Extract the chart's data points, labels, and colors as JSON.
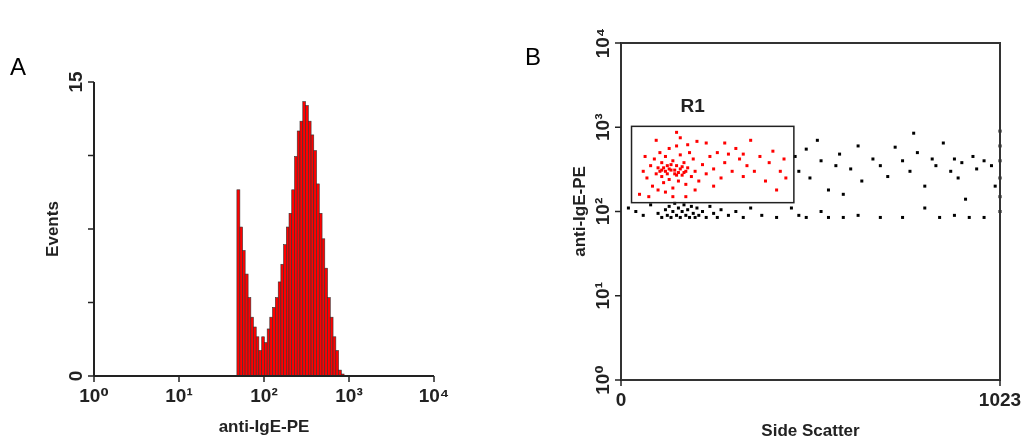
{
  "chart_data": [
    {
      "type": "histogram",
      "title": "A",
      "xlabel": "anti-IgE-PE",
      "ylabel": "Events",
      "log": "x",
      "color": "#ff0000",
      "bins": [
        48,
        52,
        56,
        60,
        65,
        70,
        75,
        81,
        87,
        94,
        101,
        109,
        117,
        126,
        136,
        147,
        158,
        170,
        183,
        197,
        212,
        229,
        246,
        265,
        286,
        308,
        332,
        358,
        385,
        415,
        447,
        482,
        519,
        559,
        602,
        649,
        700,
        754,
        812,
        875
      ],
      "values": [
        9.5,
        7.6,
        6.4,
        5.2,
        4.0,
        3.0,
        2.5,
        2.0,
        1.3,
        2.0,
        1.7,
        2.4,
        3.0,
        3.5,
        4.0,
        4.8,
        5.7,
        6.7,
        7.6,
        8.3,
        9.5,
        11.2,
        12.5,
        13.0,
        14.0,
        13.8,
        13.0,
        12.3,
        11.5,
        9.8,
        8.3,
        7.0,
        5.5,
        4.0,
        3.0,
        2.0,
        1.3,
        0.3,
        0.1
      ],
      "xlim": [
        1,
        10000
      ],
      "xticks": [
        {
          "value": 1,
          "label": "10⁰"
        },
        {
          "value": 10,
          "label": "10¹"
        },
        {
          "value": 100,
          "label": "10²"
        },
        {
          "value": 1000,
          "label": "10³"
        },
        {
          "value": 10000,
          "label": "10⁴"
        }
      ],
      "ylim": [
        0,
        15
      ],
      "yticks": [
        0,
        {
          "value": 3.75,
          "label": null
        },
        {
          "value": 7.5,
          "label": null
        },
        {
          "value": 11.25,
          "label": null
        },
        15
      ]
    },
    {
      "type": "scatter",
      "title": "B",
      "xlabel": "Side Scatter",
      "ylabel": "anti-IgE-PE",
      "log": "y",
      "marker": "square",
      "xlim": [
        0,
        1023
      ],
      "xticks": [
        0,
        1023
      ],
      "ylim": [
        1,
        10000
      ],
      "yticks": [
        {
          "value": 1,
          "label": "10⁰"
        },
        {
          "value": 10,
          "label": "10¹"
        },
        {
          "value": 100,
          "label": "10²"
        },
        {
          "value": 1000,
          "label": "10³"
        },
        {
          "value": 10000,
          "label": "10⁴"
        }
      ],
      "annotations": [
        "R1"
      ],
      "series": [
        {
          "color": "#ff0000",
          "x": [
            60,
            70,
            80,
            85,
            90,
            95,
            100,
            100,
            105,
            110,
            110,
            115,
            120,
            120,
            125,
            130,
            130,
            135,
            140,
            140,
            145,
            150,
            150,
            155,
            160,
            160,
            165,
            170,
            175,
            180,
            185,
            190,
            195,
            200,
            205,
            210,
            220,
            230,
            240,
            250,
            260,
            270,
            280,
            290,
            300,
            310,
            320,
            330,
            340,
            350,
            360,
            375,
            390,
            400,
            410,
            420,
            430,
            440,
            445,
            50,
            75,
            140,
            175,
            95,
            160,
            230,
            120,
            200,
            65,
            180,
            250,
            330,
            150,
            280,
            105,
            115,
            125,
            135,
            145,
            155,
            165,
            175,
            110,
            130,
            150,
            170
          ],
          "values": [
            300,
            250,
            350,
            200,
            420,
            280,
            330,
            180,
            500,
            260,
            380,
            220,
            300,
            450,
            350,
            240,
            560,
            310,
            400,
            190,
            280,
            350,
            600,
            230,
            320,
            470,
            270,
            380,
            210,
            330,
            500,
            260,
            420,
            300,
            680,
            230,
            360,
            280,
            450,
            320,
            500,
            250,
            380,
            480,
            300,
            560,
            420,
            260,
            350,
            700,
            300,
            450,
            230,
            380,
            520,
            180,
            300,
            420,
            250,
            160,
            150,
            150,
            150,
            700,
            750,
            650,
            170,
            180,
            450,
            620,
            200,
            480,
            870,
            650,
            300,
            330,
            280,
            360,
            310,
            290,
            340,
            300,
            310,
            320,
            270,
            290
          ]
        },
        {
          "color": "#000000",
          "x": [
            20,
            40,
            60,
            80,
            100,
            110,
            120,
            125,
            130,
            135,
            140,
            145,
            150,
            155,
            160,
            165,
            170,
            175,
            180,
            185,
            190,
            195,
            200,
            205,
            210,
            220,
            230,
            240,
            250,
            260,
            270,
            290,
            310,
            330,
            350,
            380,
            420,
            460,
            480,
            500,
            540,
            560,
            600,
            640,
            700,
            760,
            820,
            860,
            900,
            940,
            980,
            470,
            480,
            500,
            510,
            530,
            540,
            560,
            580,
            590,
            600,
            620,
            640,
            650,
            680,
            700,
            720,
            740,
            760,
            780,
            790,
            800,
            820,
            840,
            850,
            870,
            890,
            900,
            910,
            920,
            930,
            950,
            960,
            980,
            1000,
            1010,
            1023,
            1023,
            1023,
            1023,
            1023,
            1023
          ],
          "values": [
            110,
            100,
            90,
            120,
            95,
            85,
            105,
            90,
            115,
            85,
            100,
            125,
            90,
            110,
            85,
            100,
            120,
            90,
            105,
            85,
            115,
            95,
            85,
            110,
            90,
            100,
            85,
            115,
            95,
            85,
            105,
            90,
            100,
            85,
            110,
            90,
            85,
            110,
            90,
            85,
            100,
            85,
            85,
            90,
            85,
            85,
            110,
            85,
            90,
            85,
            85,
            450,
            300,
            550,
            250,
            700,
            400,
            180,
            350,
            480,
            160,
            320,
            600,
            230,
            420,
            350,
            260,
            580,
            400,
            300,
            850,
            500,
            200,
            420,
            350,
            650,
            300,
            420,
            250,
            380,
            140,
            450,
            320,
            400,
            350,
            200,
            100,
            150,
            250,
            400,
            600,
            900
          ]
        }
      ]
    }
  ]
}
